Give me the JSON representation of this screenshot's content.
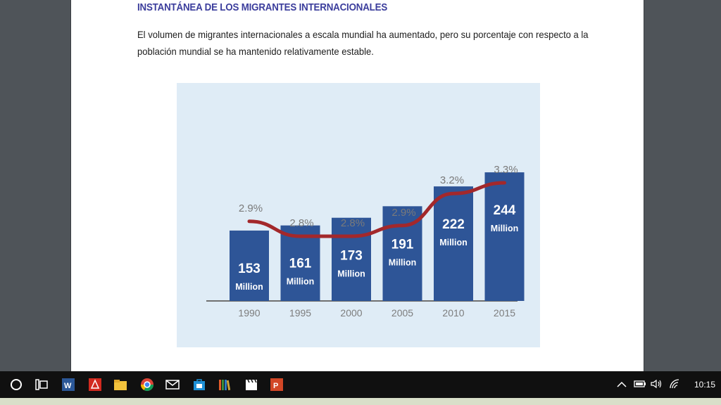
{
  "document": {
    "title": "INSTANTÁNEA DE LOS MIGRANTES INTERNACIONALES",
    "body": "El volumen de migrantes internacionales a escala mundial ha aumentado, pero su porcentaje con respecto a la población mundial se ha mantenido relativamente estable."
  },
  "chart_data": {
    "type": "bar",
    "categories": [
      "1990",
      "1995",
      "2000",
      "2005",
      "2010",
      "2015"
    ],
    "values": [
      153,
      161,
      173,
      191,
      222,
      244
    ],
    "bar_labels": [
      "153",
      "161",
      "173",
      "191",
      "222",
      "244"
    ],
    "bar_unit": "Million",
    "line": {
      "values": [
        2.9,
        2.8,
        2.8,
        2.9,
        3.2,
        3.3
      ],
      "labels": [
        "2.9%",
        "2.8%",
        "2.8%",
        "2.9%",
        "3.2%",
        "3.3%"
      ]
    },
    "colors": {
      "bars": "#2e5597",
      "line": "#a3282b",
      "background": "#dfecf6",
      "ticks": "#7d7d7d"
    }
  },
  "taskbar": {
    "apps": [
      "cortana-icon",
      "task-view-icon",
      "word-icon",
      "acrobat-icon",
      "file-explorer-icon",
      "chrome-icon",
      "mail-icon",
      "store-icon",
      "library-icon",
      "video-icon",
      "powerpoint-icon"
    ],
    "time": "10:15"
  }
}
